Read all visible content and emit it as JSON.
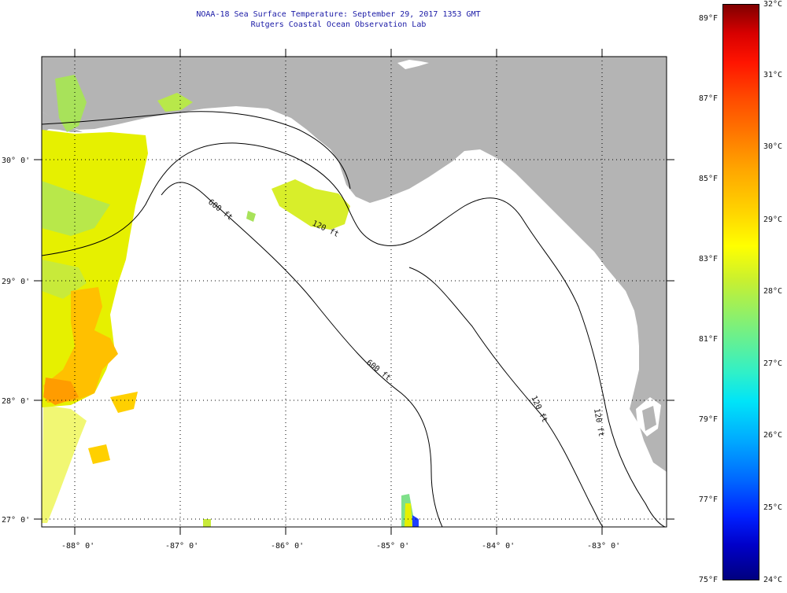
{
  "title_line1": "NOAA-18 Sea Surface Temperature:  September 29, 2017 1353 GMT",
  "title_line2": "Rutgers Coastal Ocean Observation Lab",
  "lon_labels": [
    "-88° 0'",
    "-87° 0'",
    "-86° 0'",
    "-85° 0'",
    "-84° 0'",
    "-83° 0'"
  ],
  "lat_labels": [
    "30° 0'",
    "29° 0'",
    "28° 0'",
    "27° 0'"
  ],
  "contour_labels": [
    "600 ft",
    "120 ft",
    "600 ft",
    "120 ft",
    "120 ft"
  ],
  "colorbar": {
    "fahrenheit": [
      "89°F",
      "87°F",
      "85°F",
      "83°F",
      "81°F",
      "79°F",
      "77°F",
      "75°F"
    ],
    "celsius": [
      "32°C",
      "31°C",
      "30°C",
      "29°C",
      "28°C",
      "27°C",
      "26°C",
      "25°C",
      "24°C"
    ]
  },
  "colors": {
    "land": "#b4b4b4",
    "water": "#ffffff",
    "title": "#1a1aa6",
    "contour": "#000000"
  }
}
